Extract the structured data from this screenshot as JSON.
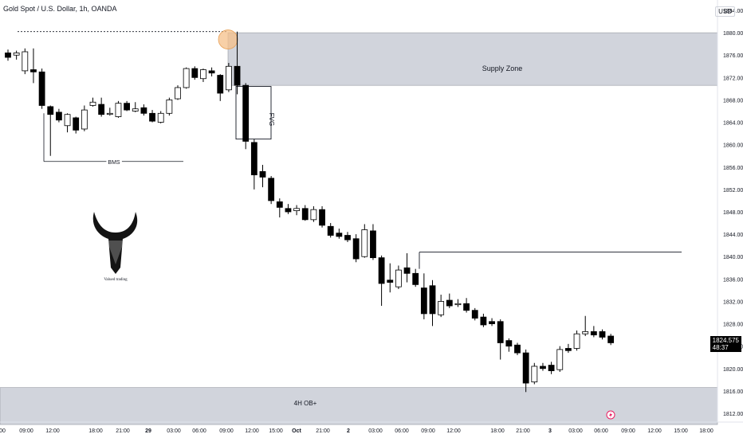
{
  "header": {
    "symbol_title": "Gold Spot / U.S. Dollar, 1h, OANDA",
    "currency": "USD"
  },
  "price_tag": {
    "price": "1824.575",
    "countdown": "48:37"
  },
  "annotations": {
    "supply_zone": "Supply Zone",
    "fvg": "FVG",
    "bms": "BMS",
    "ob": "4H OB+",
    "logo_text": "Valued trading"
  },
  "chart_data": {
    "type": "candlestick",
    "title": "Gold Spot / U.S. Dollar, 1h, OANDA",
    "ylim": [
      1810,
      1886
    ],
    "y_ticks": [
      1812,
      1816,
      1820,
      1824,
      1828,
      1832,
      1836,
      1840,
      1844,
      1848,
      1852,
      1856,
      1860,
      1864,
      1868,
      1872,
      1876,
      1880,
      1884
    ],
    "x_tick_labels": [
      "00",
      "09:00",
      "12:00",
      "18:00",
      "21:00",
      "29",
      "03:00",
      "06:00",
      "09:00",
      "12:00",
      "15:00",
      "Oct",
      "21:00",
      "2",
      "03:00",
      "06:00",
      "09:00",
      "12:00",
      "18:00",
      "21:00",
      "3",
      "03:00",
      "06:00",
      "09:00",
      "12:00",
      "15:00",
      "18:00"
    ],
    "candles": [
      {
        "o": 1876.4,
        "h": 1877.0,
        "c": 1875.6,
        "l": 1875.0
      },
      {
        "o": 1876.0,
        "h": 1876.8,
        "c": 1876.4,
        "l": 1875.2
      },
      {
        "o": 1873.2,
        "h": 1877.2,
        "c": 1876.6,
        "l": 1872.6
      },
      {
        "o": 1873.4,
        "h": 1877.2,
        "c": 1873.0,
        "l": 1871.0
      },
      {
        "o": 1873.0,
        "h": 1873.6,
        "c": 1867.0,
        "l": 1866.4
      },
      {
        "o": 1866.8,
        "h": 1867.0,
        "c": 1865.4,
        "l": 1858.0
      },
      {
        "o": 1865.8,
        "h": 1866.4,
        "c": 1864.4,
        "l": 1864.0
      },
      {
        "o": 1863.4,
        "h": 1865.6,
        "c": 1865.4,
        "l": 1862.2
      },
      {
        "o": 1864.8,
        "h": 1865.0,
        "c": 1862.6,
        "l": 1862.0
      },
      {
        "o": 1862.8,
        "h": 1867.0,
        "c": 1866.2,
        "l": 1862.4
      },
      {
        "o": 1867.0,
        "h": 1868.4,
        "c": 1867.6,
        "l": 1866.8
      },
      {
        "o": 1867.2,
        "h": 1868.4,
        "c": 1865.4,
        "l": 1865.0
      },
      {
        "o": 1865.4,
        "h": 1866.6,
        "c": 1865.6,
        "l": 1865.2
      },
      {
        "o": 1865.0,
        "h": 1867.8,
        "c": 1867.4,
        "l": 1864.8
      },
      {
        "o": 1867.4,
        "h": 1867.8,
        "c": 1866.2,
        "l": 1866.0
      },
      {
        "o": 1866.0,
        "h": 1867.6,
        "c": 1866.4,
        "l": 1865.8
      },
      {
        "o": 1866.6,
        "h": 1867.2,
        "c": 1865.6,
        "l": 1865.2
      },
      {
        "o": 1865.6,
        "h": 1866.2,
        "c": 1864.2,
        "l": 1864.0
      },
      {
        "o": 1864.0,
        "h": 1866.0,
        "c": 1865.6,
        "l": 1863.8
      },
      {
        "o": 1865.6,
        "h": 1868.4,
        "c": 1868.0,
        "l": 1865.2
      },
      {
        "o": 1868.2,
        "h": 1870.6,
        "c": 1870.2,
        "l": 1868.0
      },
      {
        "o": 1870.2,
        "h": 1873.8,
        "c": 1873.6,
        "l": 1870.0
      },
      {
        "o": 1873.6,
        "h": 1874.0,
        "c": 1872.0,
        "l": 1871.6
      },
      {
        "o": 1871.8,
        "h": 1873.6,
        "c": 1873.4,
        "l": 1871.2
      },
      {
        "o": 1873.2,
        "h": 1873.8,
        "c": 1872.8,
        "l": 1872.2
      },
      {
        "o": 1872.4,
        "h": 1872.6,
        "c": 1869.2,
        "l": 1867.8
      },
      {
        "o": 1869.8,
        "h": 1874.6,
        "c": 1874.0,
        "l": 1869.4
      },
      {
        "o": 1874.0,
        "h": 1880.2,
        "c": 1870.6,
        "l": 1869.0
      },
      {
        "o": 1870.6,
        "h": 1871.0,
        "c": 1860.6,
        "l": 1859.2
      },
      {
        "o": 1860.4,
        "h": 1861.0,
        "c": 1854.6,
        "l": 1852.0
      },
      {
        "o": 1855.2,
        "h": 1856.4,
        "c": 1854.2,
        "l": 1852.4
      },
      {
        "o": 1854.0,
        "h": 1854.4,
        "c": 1850.0,
        "l": 1849.4
      },
      {
        "o": 1849.8,
        "h": 1850.4,
        "c": 1848.8,
        "l": 1847.0
      },
      {
        "o": 1848.6,
        "h": 1849.4,
        "c": 1848.0,
        "l": 1847.6
      },
      {
        "o": 1848.2,
        "h": 1849.2,
        "c": 1848.6,
        "l": 1847.4
      },
      {
        "o": 1848.6,
        "h": 1849.2,
        "c": 1846.6,
        "l": 1846.4
      },
      {
        "o": 1846.6,
        "h": 1849.0,
        "c": 1848.4,
        "l": 1846.2
      },
      {
        "o": 1848.4,
        "h": 1849.0,
        "c": 1845.6,
        "l": 1845.2
      },
      {
        "o": 1845.4,
        "h": 1846.0,
        "c": 1843.8,
        "l": 1843.4
      },
      {
        "o": 1844.2,
        "h": 1845.0,
        "c": 1843.6,
        "l": 1843.2
      },
      {
        "o": 1843.8,
        "h": 1844.4,
        "c": 1843.0,
        "l": 1842.6
      },
      {
        "o": 1843.2,
        "h": 1844.0,
        "c": 1839.6,
        "l": 1839.0
      },
      {
        "o": 1840.0,
        "h": 1845.8,
        "c": 1844.8,
        "l": 1839.8
      },
      {
        "o": 1844.6,
        "h": 1845.8,
        "c": 1839.8,
        "l": 1839.4
      },
      {
        "o": 1839.8,
        "h": 1840.2,
        "c": 1835.2,
        "l": 1831.2
      },
      {
        "o": 1835.8,
        "h": 1838.8,
        "c": 1835.4,
        "l": 1833.6
      },
      {
        "o": 1834.6,
        "h": 1838.4,
        "c": 1837.6,
        "l": 1834.2
      },
      {
        "o": 1838.0,
        "h": 1840.6,
        "c": 1837.0,
        "l": 1835.4
      },
      {
        "o": 1837.0,
        "h": 1837.8,
        "c": 1835.0,
        "l": 1834.6
      },
      {
        "o": 1834.4,
        "h": 1837.0,
        "c": 1829.8,
        "l": 1828.8
      },
      {
        "o": 1834.8,
        "h": 1835.8,
        "c": 1829.8,
        "l": 1827.6
      },
      {
        "o": 1829.6,
        "h": 1833.2,
        "c": 1832.0,
        "l": 1829.2
      },
      {
        "o": 1832.2,
        "h": 1833.4,
        "c": 1831.2,
        "l": 1830.8
      },
      {
        "o": 1831.4,
        "h": 1832.4,
        "c": 1831.6,
        "l": 1831.0
      },
      {
        "o": 1831.6,
        "h": 1832.6,
        "c": 1830.4,
        "l": 1830.0
      },
      {
        "o": 1830.4,
        "h": 1830.8,
        "c": 1829.0,
        "l": 1828.6
      },
      {
        "o": 1829.2,
        "h": 1829.8,
        "c": 1827.8,
        "l": 1827.4
      },
      {
        "o": 1828.4,
        "h": 1829.0,
        "c": 1828.0,
        "l": 1827.6
      },
      {
        "o": 1828.4,
        "h": 1828.8,
        "c": 1824.6,
        "l": 1821.6
      },
      {
        "o": 1825.0,
        "h": 1825.4,
        "c": 1824.0,
        "l": 1823.0
      },
      {
        "o": 1824.2,
        "h": 1824.6,
        "c": 1822.8,
        "l": 1822.4
      },
      {
        "o": 1822.8,
        "h": 1823.4,
        "c": 1817.4,
        "l": 1815.8
      },
      {
        "o": 1817.6,
        "h": 1821.0,
        "c": 1820.4,
        "l": 1817.2
      },
      {
        "o": 1820.4,
        "h": 1821.0,
        "c": 1820.0,
        "l": 1819.6
      },
      {
        "o": 1820.6,
        "h": 1821.2,
        "c": 1819.6,
        "l": 1819.0
      },
      {
        "o": 1819.8,
        "h": 1824.0,
        "c": 1823.4,
        "l": 1819.4
      },
      {
        "o": 1823.6,
        "h": 1824.4,
        "c": 1823.2,
        "l": 1822.8
      },
      {
        "o": 1823.6,
        "h": 1826.8,
        "c": 1826.2,
        "l": 1823.2
      },
      {
        "o": 1826.2,
        "h": 1829.4,
        "c": 1826.6,
        "l": 1825.8
      },
      {
        "o": 1826.6,
        "h": 1827.6,
        "c": 1826.0,
        "l": 1825.6
      },
      {
        "o": 1826.6,
        "h": 1827.0,
        "c": 1825.6,
        "l": 1825.2
      },
      {
        "o": 1825.8,
        "h": 1826.2,
        "c": 1824.6,
        "l": 1824.2
      }
    ],
    "zones": [
      {
        "name": "Supply Zone",
        "low": 1870.6,
        "high": 1880.0
      },
      {
        "name": "4H OB+",
        "low": 1810.0,
        "high": 1816.6
      }
    ],
    "fvg": {
      "label": "FVG",
      "low": 1861.0,
      "high": 1870.4
    },
    "bms": {
      "label": "BMS",
      "price": 1857.0
    },
    "lines": [
      {
        "name": "dotted-high",
        "price": 1880.2,
        "style": "dotted"
      },
      {
        "name": "horizontal-level",
        "price": 1840.8,
        "style": "solid"
      }
    ]
  }
}
